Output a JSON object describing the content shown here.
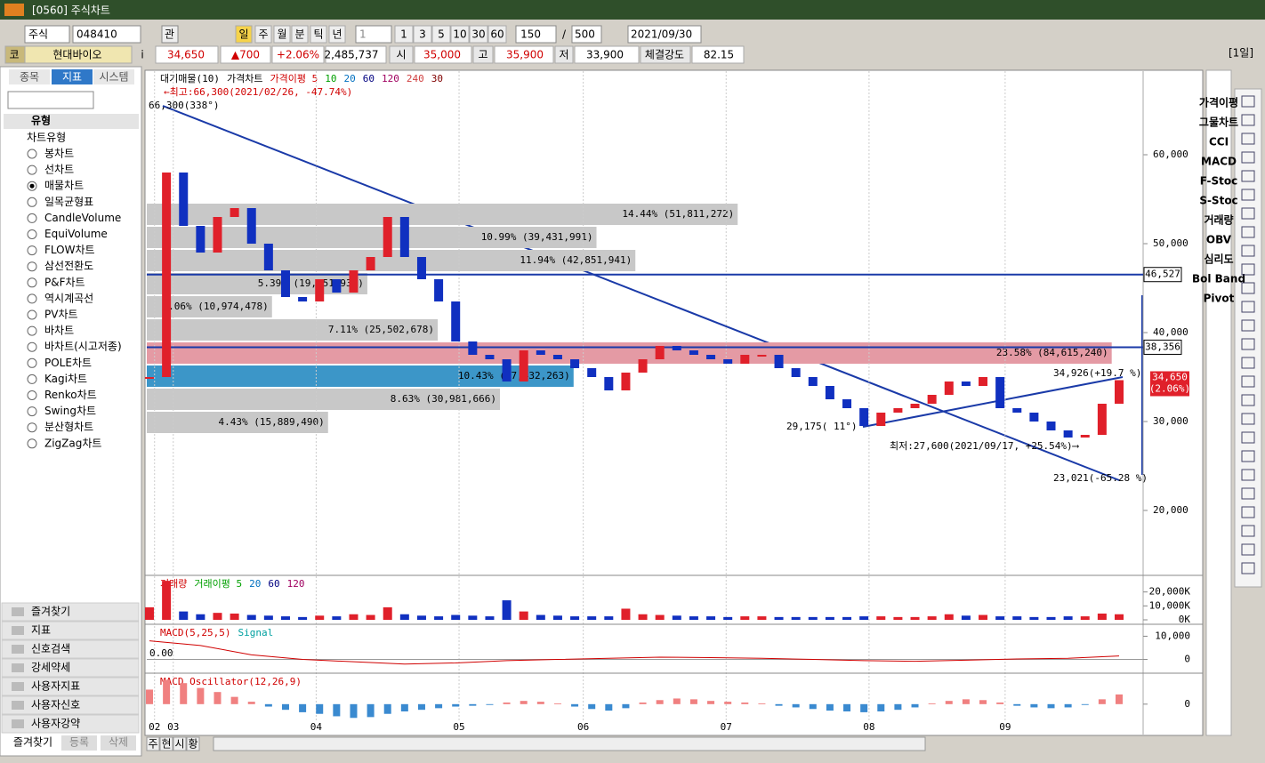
{
  "window": {
    "title": "[0560] 주식차트"
  },
  "toolbar": {
    "market": "주식",
    "code": "048410",
    "button": "관",
    "periods": [
      "일",
      "주",
      "월",
      "분",
      "틱",
      "년"
    ],
    "interval": "1",
    "counts": [
      "1",
      "3",
      "5",
      "10",
      "30",
      "60"
    ],
    "bars": "150",
    "separator": "/",
    "total": "500",
    "date": "2021/09/30",
    "unit": "[1일]"
  },
  "quote": {
    "code_label": "코",
    "name": "현대바이오",
    "info": "i",
    "price": "34,650",
    "change": "▲700",
    "rate": "+2.06%",
    "volume": "2,485,737",
    "open_label": "시",
    "open": "35,000",
    "high_label": "고",
    "high": "35,900",
    "low_label": "저",
    "low": "33,900",
    "strength_label": "체결강도",
    "strength": "82.15"
  },
  "sidebar": {
    "tabs": [
      "종목",
      "지표",
      "시스템"
    ],
    "group": "유형",
    "section": "차트유형",
    "chart_types": [
      "봉차트",
      "선차트",
      "매물차트",
      "일목균형표",
      "CandleVolume",
      "EquiVolume",
      "FLOW차트",
      "삼선전환도",
      "P&F차트",
      "역시계곡선",
      "PV차트",
      "바차트",
      "바차트(시고저종)",
      "POLE차트",
      "Kagi차트",
      "Renko차트",
      "Swing차트",
      "분산형차트",
      "ZigZag차트"
    ],
    "selected": 2,
    "folders": [
      "즐겨찾기",
      "지표",
      "신호검색",
      "강세약세",
      "사용자지표",
      "사용자신호",
      "사용자강약"
    ],
    "bottom_tabs": [
      "즐겨찾기",
      "등록",
      "삭제"
    ]
  },
  "right_tools": [
    "가격이평",
    "그물차트",
    "CCI",
    "MACD",
    "F-Stoc",
    "S-Stoc",
    "거래량",
    "OBV",
    "심리도",
    "Bol Band",
    "Pivot"
  ],
  "bottom_buttons": [
    "주",
    "현",
    "시",
    "황"
  ],
  "chart_data": {
    "type": "candlestick",
    "legend": [
      {
        "name": "대기매물(10)",
        "color": "#000000"
      },
      {
        "name": "가격차트",
        "color": "#000000"
      },
      {
        "name": "가격이평 5",
        "color": "#d00000"
      },
      {
        "name": "10",
        "color": "#00a000"
      },
      {
        "name": "20",
        "color": "#0070c0"
      },
      {
        "name": "60",
        "color": "#000080"
      },
      {
        "name": "120",
        "color": "#a00060"
      },
      {
        "name": "240",
        "color": "#d04040"
      },
      {
        "name": "30",
        "color": "#800000"
      }
    ],
    "closes": [
      35000,
      58000,
      52000,
      49000,
      53000,
      54000,
      50000,
      47000,
      44000,
      43500,
      46000,
      44500,
      47000,
      48500,
      53000,
      48500,
      46000,
      43500,
      39000,
      37500,
      37000,
      34500,
      38000,
      37500,
      37000,
      36000,
      35000,
      33500,
      35500,
      37000,
      38500,
      38000,
      37500,
      37000,
      36500,
      37500,
      37500,
      36000,
      35000,
      34000,
      32500,
      31500,
      29500,
      31000,
      31500,
      32000,
      33000,
      34500,
      34000,
      35000,
      31500,
      31000,
      30000,
      29000,
      28200,
      28500,
      32000,
      34650
    ],
    "up_color": "#e0202a",
    "down_color": "#1030c0",
    "xlim": [
      0,
      57
    ],
    "xticks": [
      {
        "value": 0.3,
        "label": "02"
      },
      {
        "value": 1.4,
        "label": "03"
      },
      {
        "value": 9.8,
        "label": "04"
      },
      {
        "value": 18.2,
        "label": "05"
      },
      {
        "value": 25.5,
        "label": "06"
      },
      {
        "value": 33.9,
        "label": "07"
      },
      {
        "value": 42.3,
        "label": "08"
      },
      {
        "value": 50.3,
        "label": "09"
      }
    ],
    "ylim": [
      13200,
      69400
    ],
    "yticks": [
      {
        "value": 60000,
        "label": "60,000"
      },
      {
        "value": 50000,
        "label": "50,000"
      },
      {
        "value": 40000,
        "label": "40,000"
      },
      {
        "value": 30000,
        "label": "30,000"
      },
      {
        "value": 20000,
        "label": "20,000"
      }
    ],
    "levels": [
      {
        "value": 46527,
        "label": "46,527"
      },
      {
        "value": 38356,
        "label": "38,356"
      }
    ],
    "current": {
      "value": 34650,
      "label": "34,650",
      "rate": "(2.06%)"
    },
    "profile": [
      {
        "pct": 14.44,
        "label": "14.44% (51,811,272)",
        "color": "#c8c8c8"
      },
      {
        "pct": 10.99,
        "label": "10.99% (39,431,991)",
        "color": "#c8c8c8"
      },
      {
        "pct": 11.94,
        "label": "11.94% (42,851,941)",
        "color": "#c8c8c8"
      },
      {
        "pct": 5.39,
        "label": "5.39% (19,351,932)",
        "color": "#c8c8c8"
      },
      {
        "pct": 3.06,
        "label": "3.06% (10,974,478)",
        "color": "#c8c8c8"
      },
      {
        "pct": 7.11,
        "label": "7.11% (25,502,678)",
        "color": "#c8c8c8"
      },
      {
        "pct": 23.58,
        "label": "23.58% (84,615,240)",
        "color": "#e49aa4"
      },
      {
        "pct": 10.43,
        "label": "10.43% (37,432,263)",
        "color": "#3c96c8"
      },
      {
        "pct": 8.63,
        "label": "8.63% (30,981,666)",
        "color": "#c8c8c8"
      },
      {
        "pct": 4.43,
        "label": "4.43% (15,889,490)",
        "color": "#c8c8c8"
      }
    ],
    "annotations": {
      "high": "←최고:66,300(2021/02/26, -47.74%)",
      "high_angle": "66,300(338°)",
      "low_angle": "29,175( 11°)",
      "low": "최저:27,600(2021/09/17, +25.54%)⟶",
      "up_trend": "34,926(+19.7 %)",
      "down_trend": "23,021(-65.28 %)"
    },
    "volume": {
      "legend": [
        {
          "name": "거래량",
          "color": "#d00000"
        },
        {
          "name": "거래이평 5",
          "color": "#00a000"
        },
        {
          "name": "20",
          "color": "#0070c0"
        },
        {
          "name": "60",
          "color": "#000080"
        },
        {
          "name": "120",
          "color": "#a00060"
        }
      ],
      "values": [
        9000,
        28000,
        6000,
        4000,
        5000,
        4500,
        3500,
        3000,
        2500,
        2000,
        3000,
        2500,
        4000,
        3500,
        9000,
        4000,
        3000,
        2500,
        3500,
        3000,
        2500,
        14000,
        6000,
        3500,
        3000,
        2500,
        2500,
        2500,
        8000,
        4000,
        3500,
        3000,
        2500,
        2500,
        2000,
        2500,
        2500,
        2000,
        2000,
        2000,
        2000,
        2000,
        2500,
        2500,
        2000,
        2000,
        2500,
        4000,
        3000,
        3500,
        2500,
        2500,
        2000,
        2000,
        2500,
        2500,
        4500,
        4000
      ],
      "ylim": [
        0,
        30000
      ],
      "yticks": [
        {
          "value": 20000,
          "label": "20,000K"
        },
        {
          "value": 10000,
          "label": "10,000K"
        },
        {
          "value": 0,
          "label": "0K"
        }
      ]
    },
    "macd": {
      "legend": [
        {
          "name": "MACD(5,25,5)",
          "color": "#d00000"
        },
        {
          "name": "Signal",
          "color": "#00a0a0"
        }
      ],
      "zero_label": "0.00",
      "values": [
        8000,
        6000,
        2000,
        0,
        -1000,
        -2000,
        -1500,
        -500,
        0,
        500,
        1000,
        800,
        500,
        0,
        -500,
        -800,
        -300,
        200,
        500,
        1500
      ],
      "ylim": [
        -4000,
        14000
      ],
      "yticks": [
        {
          "value": 10000,
          "label": "10,000"
        },
        0
      ]
    },
    "oscillator": {
      "legend": [
        {
          "name": "MACD Oscillator(12,26,9)",
          "color": "#d00000"
        }
      ],
      "values": [
        1800,
        3000,
        2600,
        2000,
        1500,
        900,
        300,
        -300,
        -700,
        -1000,
        -1200,
        -1500,
        -1700,
        -1600,
        -1200,
        -900,
        -700,
        -500,
        -300,
        -200,
        -100,
        200,
        400,
        300,
        100,
        -300,
        -600,
        -800,
        -500,
        200,
        500,
        700,
        600,
        400,
        300,
        200,
        100,
        -200,
        -400,
        -600,
        -800,
        -900,
        -1000,
        -900,
        -700,
        -400,
        100,
        400,
        600,
        500,
        200,
        -200,
        -400,
        -500,
        -400,
        -100,
        600,
        1200
      ],
      "ylim": [
        -2000,
        3500
      ],
      "yticks": [
        0
      ],
      "pos_color": "#f08080",
      "neg_color": "#3a8ad0"
    }
  }
}
